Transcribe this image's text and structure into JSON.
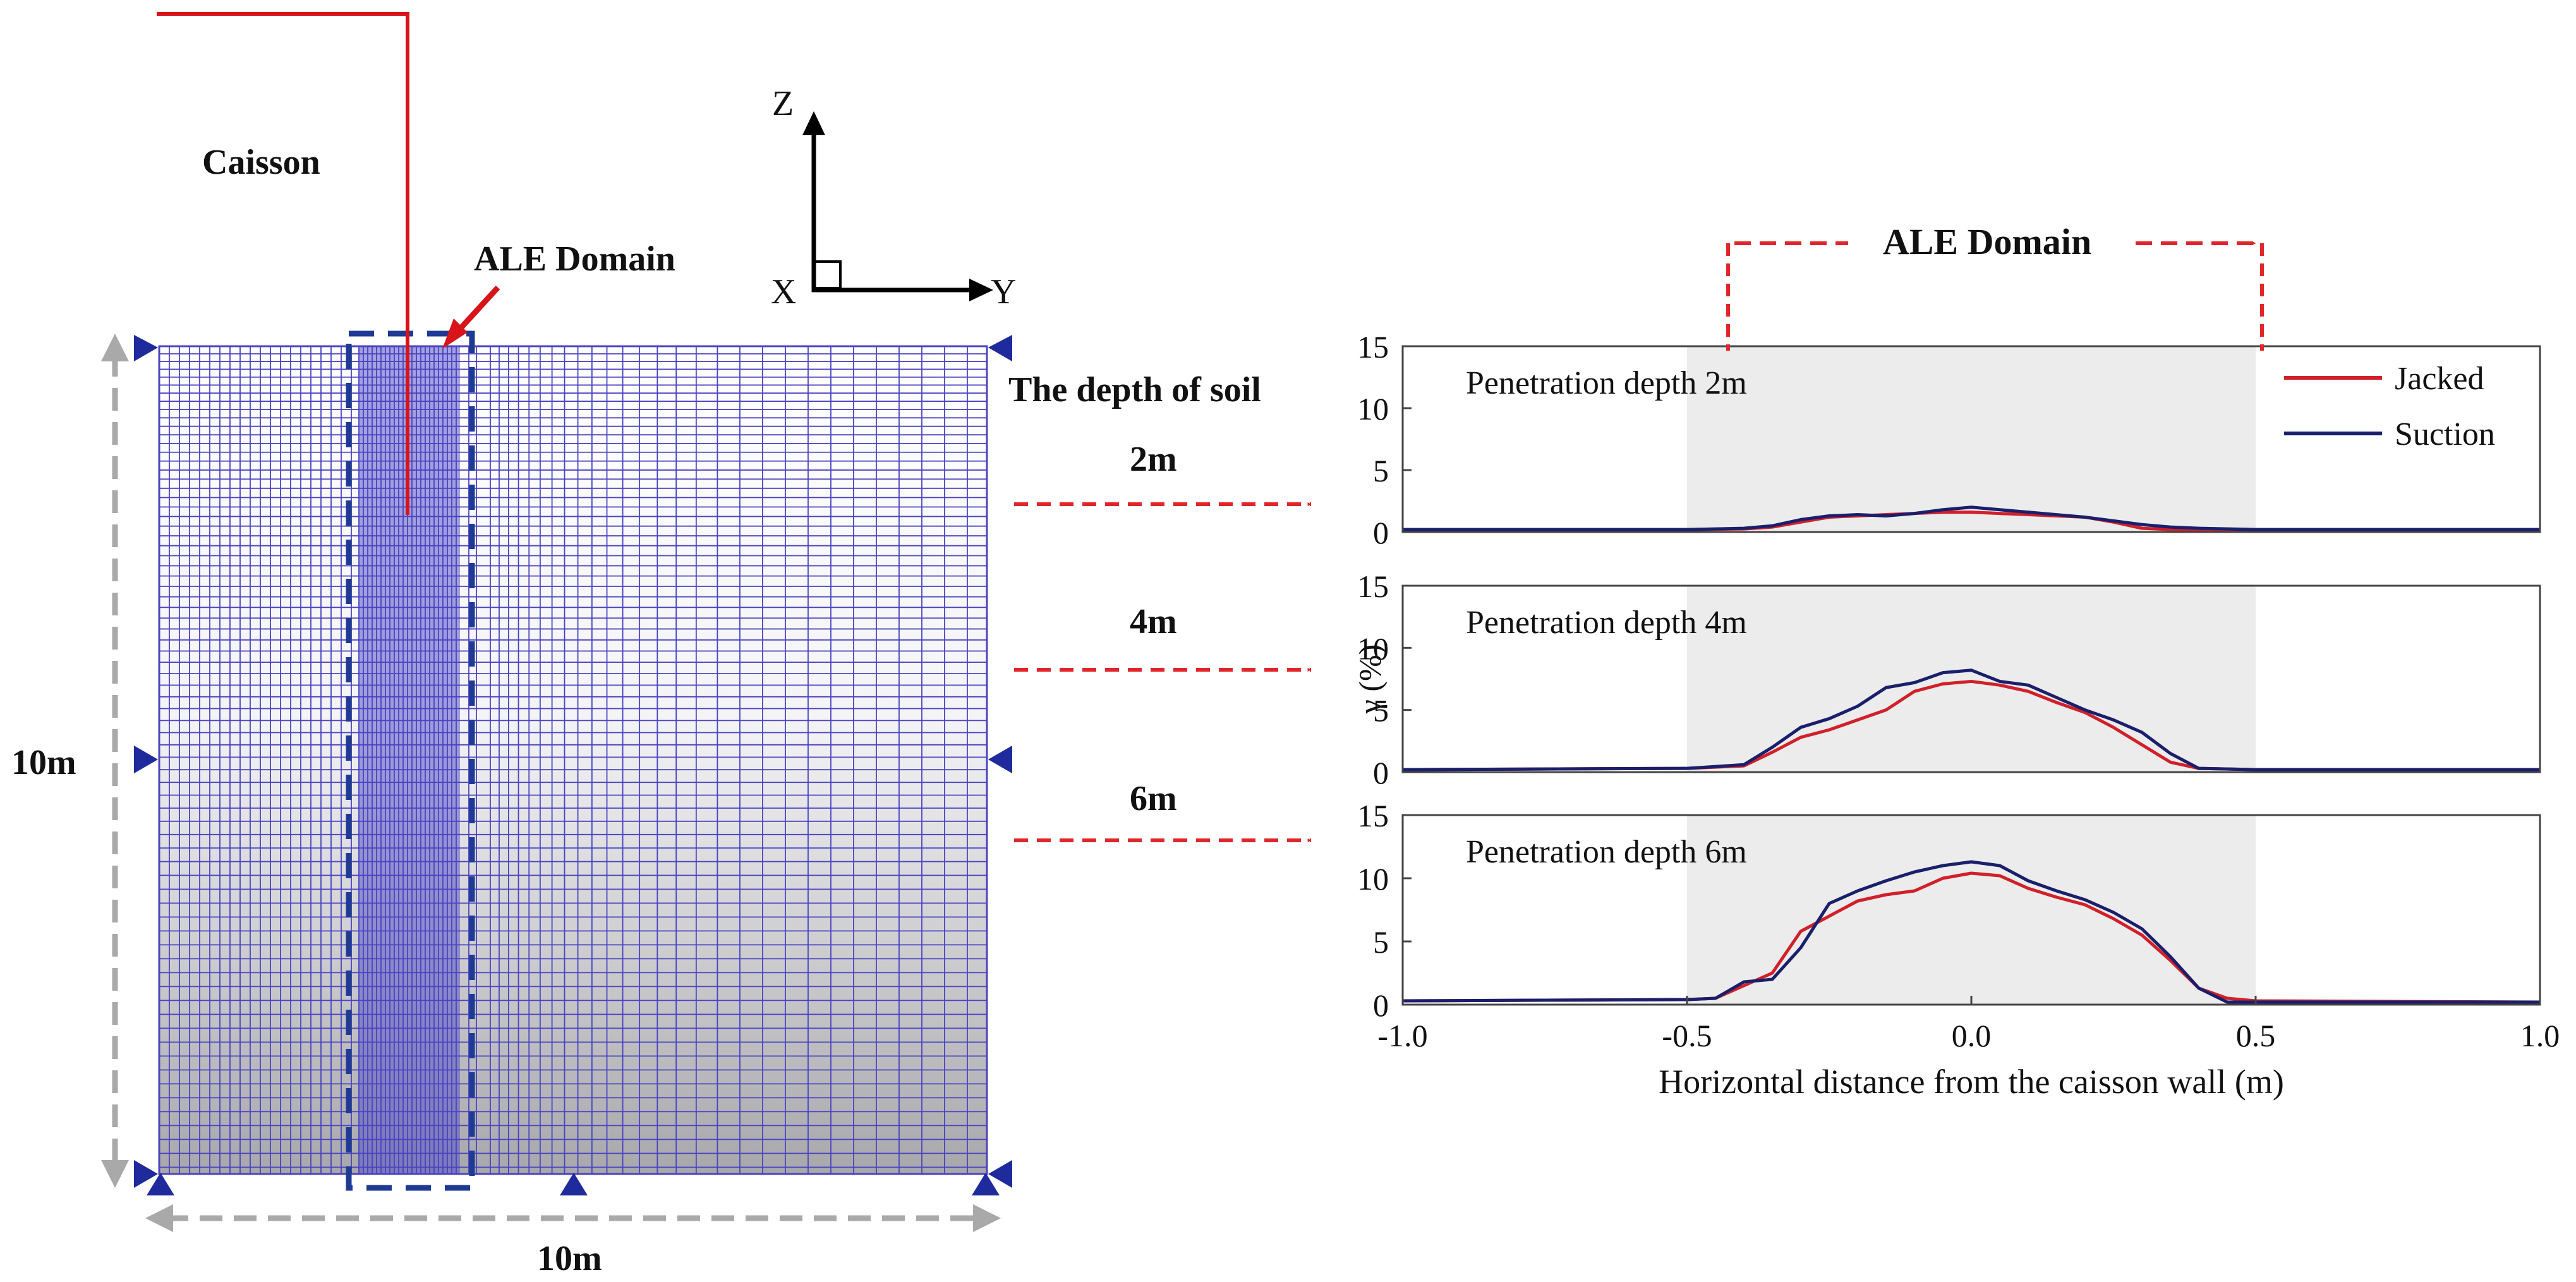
{
  "diagram": {
    "caisson_label": "Caisson",
    "ale_domain_label": "ALE Domain",
    "axis_z": "Z",
    "axis_x": "X",
    "axis_y": "Y",
    "height_dim": "10m",
    "width_dim": "10m",
    "soil_depth_title": "The depth of soil",
    "depths": [
      "2m",
      "4m",
      "6m"
    ],
    "colors": {
      "mesh": "#3b36b0",
      "ale_box": "#1f3a93",
      "arrow": "#e0262a",
      "caisson": "#d7141a",
      "support": "#1f2a9c",
      "dimension": "#a9a9a9"
    }
  },
  "chart_data": [
    {
      "type": "line",
      "panel_label": "Penetration depth 2m",
      "ylim": [
        0,
        15
      ],
      "yticks": [
        0,
        5,
        10,
        15
      ],
      "xlim": [
        -1.0,
        1.0
      ],
      "shaded_region": [
        -0.5,
        0.5
      ],
      "series": [
        {
          "name": "Jacked",
          "color": "#d0202a",
          "x": [
            -1.0,
            -0.5,
            -0.4,
            -0.35,
            -0.3,
            -0.25,
            -0.2,
            -0.15,
            -0.1,
            -0.05,
            0.0,
            0.05,
            0.1,
            0.15,
            0.2,
            0.25,
            0.3,
            0.35,
            0.4,
            0.5,
            1.0
          ],
          "y": [
            0.2,
            0.2,
            0.25,
            0.4,
            0.8,
            1.2,
            1.3,
            1.4,
            1.5,
            1.6,
            1.6,
            1.5,
            1.4,
            1.3,
            1.2,
            0.8,
            0.3,
            0.2,
            0.2,
            0.2,
            0.2
          ]
        },
        {
          "name": "Suction",
          "color": "#1a1f6b",
          "x": [
            -1.0,
            -0.5,
            -0.4,
            -0.35,
            -0.3,
            -0.25,
            -0.2,
            -0.15,
            -0.1,
            -0.05,
            0.0,
            0.05,
            0.1,
            0.15,
            0.2,
            0.25,
            0.3,
            0.35,
            0.4,
            0.5,
            1.0
          ],
          "y": [
            0.2,
            0.2,
            0.3,
            0.5,
            1.0,
            1.3,
            1.4,
            1.3,
            1.5,
            1.8,
            2.0,
            1.8,
            1.6,
            1.4,
            1.2,
            0.9,
            0.6,
            0.4,
            0.3,
            0.2,
            0.2
          ]
        }
      ]
    },
    {
      "type": "line",
      "panel_label": "Penetration depth 4m",
      "ylabel": "γ (%)",
      "ylim": [
        0,
        15
      ],
      "yticks": [
        0,
        5,
        10,
        15
      ],
      "xlim": [
        -1.0,
        1.0
      ],
      "shaded_region": [
        -0.5,
        0.5
      ],
      "series": [
        {
          "name": "Jacked",
          "color": "#d0202a",
          "x": [
            -1.0,
            -0.5,
            -0.4,
            -0.35,
            -0.3,
            -0.25,
            -0.2,
            -0.15,
            -0.1,
            -0.05,
            0.0,
            0.05,
            0.1,
            0.15,
            0.2,
            0.25,
            0.3,
            0.35,
            0.4,
            0.5,
            1.0
          ],
          "y": [
            0.2,
            0.3,
            0.5,
            1.6,
            2.8,
            3.4,
            4.2,
            5.0,
            6.5,
            7.1,
            7.3,
            7.0,
            6.5,
            5.6,
            4.8,
            3.6,
            2.2,
            0.8,
            0.3,
            0.2,
            0.2
          ]
        },
        {
          "name": "Suction",
          "color": "#1a1f6b",
          "x": [
            -1.0,
            -0.5,
            -0.4,
            -0.35,
            -0.3,
            -0.25,
            -0.2,
            -0.15,
            -0.1,
            -0.05,
            0.0,
            0.05,
            0.1,
            0.15,
            0.2,
            0.25,
            0.3,
            0.35,
            0.4,
            0.5,
            1.0
          ],
          "y": [
            0.2,
            0.3,
            0.6,
            2.0,
            3.6,
            4.3,
            5.3,
            6.8,
            7.2,
            8.0,
            8.2,
            7.3,
            7.0,
            6.0,
            5.0,
            4.2,
            3.2,
            1.5,
            0.3,
            0.2,
            0.2
          ]
        }
      ]
    },
    {
      "type": "line",
      "panel_label": "Penetration depth 6m",
      "ylim": [
        0,
        15
      ],
      "yticks": [
        0,
        5,
        10,
        15
      ],
      "xlim": [
        -1.0,
        1.0
      ],
      "xticks": [
        -1.0,
        -0.5,
        0.0,
        0.5,
        1.0
      ],
      "xlabel": "Horizontal distance from the caisson wall (m)",
      "shaded_region": [
        -0.5,
        0.5
      ],
      "series": [
        {
          "name": "Jacked",
          "color": "#d0202a",
          "x": [
            -1.0,
            -0.5,
            -0.45,
            -0.4,
            -0.35,
            -0.3,
            -0.25,
            -0.2,
            -0.15,
            -0.1,
            -0.05,
            0.0,
            0.05,
            0.1,
            0.15,
            0.2,
            0.25,
            0.3,
            0.35,
            0.4,
            0.45,
            0.5,
            1.0
          ],
          "y": [
            0.3,
            0.4,
            0.5,
            1.5,
            2.5,
            5.8,
            7.0,
            8.2,
            8.7,
            9.0,
            10.0,
            10.4,
            10.2,
            9.2,
            8.5,
            7.9,
            6.8,
            5.5,
            3.5,
            1.3,
            0.5,
            0.3,
            0.2
          ]
        },
        {
          "name": "Suction",
          "color": "#1a1f6b",
          "x": [
            -1.0,
            -0.5,
            -0.45,
            -0.4,
            -0.35,
            -0.3,
            -0.25,
            -0.2,
            -0.15,
            -0.1,
            -0.05,
            0.0,
            0.05,
            0.1,
            0.15,
            0.2,
            0.25,
            0.3,
            0.35,
            0.4,
            0.45,
            0.5,
            1.0
          ],
          "y": [
            0.3,
            0.4,
            0.5,
            1.8,
            2.0,
            4.5,
            8.0,
            9.0,
            9.8,
            10.5,
            11.0,
            11.3,
            11.0,
            9.8,
            9.0,
            8.3,
            7.3,
            6.0,
            3.8,
            1.3,
            0.2,
            0.2,
            0.2
          ]
        }
      ]
    }
  ]
}
